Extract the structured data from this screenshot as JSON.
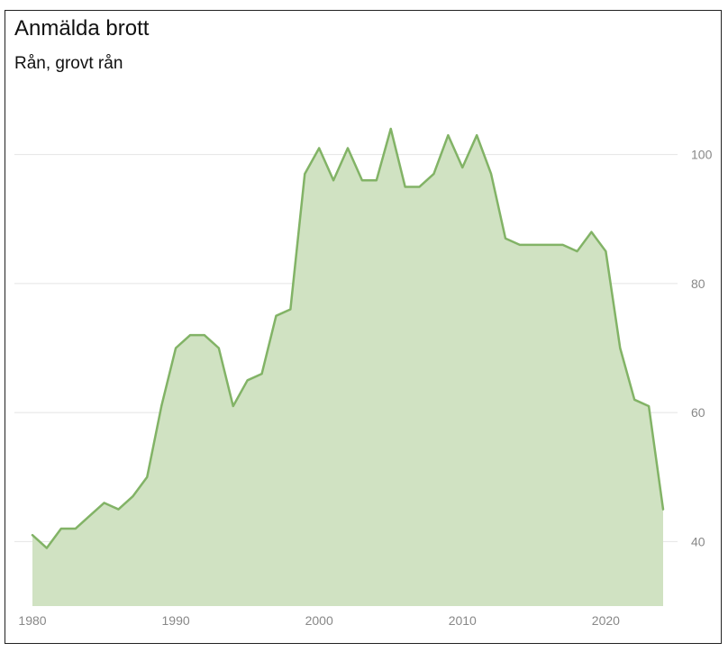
{
  "chart_data": {
    "type": "area",
    "title": "Anmälda brott",
    "subtitle": "Rån, grovt rån",
    "xlabel": "",
    "ylabel": "",
    "grid": true,
    "y_axis_position": "right",
    "xlim": [
      1980,
      2024
    ],
    "ylim": [
      30,
      110
    ],
    "x_ticks": [
      1980,
      1990,
      2000,
      2010,
      2020
    ],
    "y_ticks": [
      40,
      60,
      80,
      100
    ],
    "colors": {
      "line": "#82b366",
      "fill": "#d0e2c2"
    },
    "x": [
      1980,
      1981,
      1982,
      1983,
      1984,
      1985,
      1986,
      1987,
      1988,
      1989,
      1990,
      1991,
      1992,
      1993,
      1994,
      1995,
      1996,
      1997,
      1998,
      1999,
      2000,
      2001,
      2002,
      2003,
      2004,
      2005,
      2006,
      2007,
      2008,
      2009,
      2010,
      2011,
      2012,
      2013,
      2014,
      2015,
      2016,
      2017,
      2018,
      2019,
      2020,
      2021,
      2022,
      2023,
      2024
    ],
    "values": [
      41,
      39,
      42,
      42,
      44,
      46,
      45,
      47,
      50,
      61,
      70,
      72,
      72,
      70,
      61,
      65,
      66,
      75,
      76,
      97,
      101,
      96,
      101,
      96,
      96,
      104,
      95,
      95,
      97,
      103,
      98,
      103,
      97,
      87,
      86,
      86,
      86,
      86,
      85,
      88,
      85,
      70,
      62,
      61,
      45
    ]
  }
}
